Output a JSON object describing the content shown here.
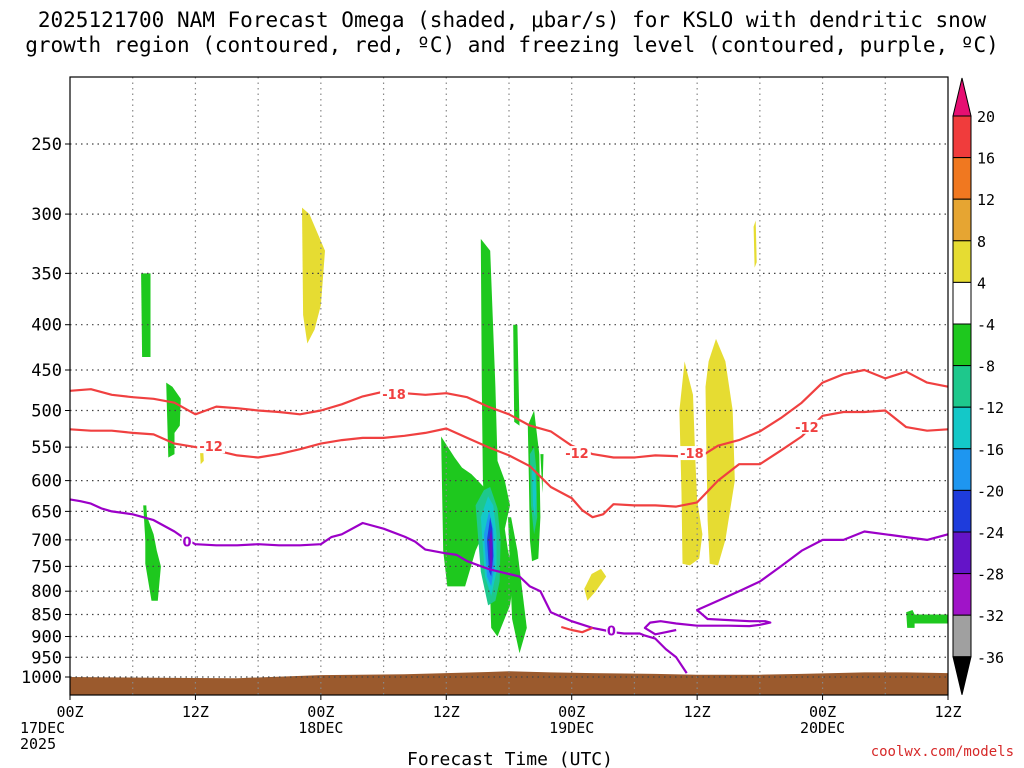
{
  "title_lines": [
    "2025121700 NAM Forecast Omega (shaded, μbar/s) for KSLO with dendritic snow",
    "growth region (contoured, red, ºC) and freezing level (contoured, purple, ºC)"
  ],
  "credit": "coolwx.com/models",
  "chart_data": {
    "type": "time-height cross section",
    "xlabel": "Forecast Time (UTC)",
    "ylabel": "",
    "x_unit": "hours since 2025-12-17 00Z",
    "xlim": [
      0,
      84
    ],
    "ylim": [
      1030,
      200
    ],
    "x_ticks": [
      {
        "hour": 0,
        "lines": [
          "00Z",
          "17DEC",
          "2025"
        ]
      },
      {
        "hour": 12,
        "lines": [
          "12Z"
        ]
      },
      {
        "hour": 24,
        "lines": [
          "00Z",
          "18DEC"
        ]
      },
      {
        "hour": 36,
        "lines": [
          "12Z"
        ]
      },
      {
        "hour": 48,
        "lines": [
          "00Z",
          "19DEC"
        ]
      },
      {
        "hour": 60,
        "lines": [
          "12Z"
        ]
      },
      {
        "hour": 72,
        "lines": [
          "00Z",
          "20DEC"
        ]
      },
      {
        "hour": 84,
        "lines": [
          "12Z"
        ]
      }
    ],
    "y_ticks": [
      250,
      300,
      350,
      400,
      450,
      500,
      550,
      600,
      650,
      700,
      750,
      800,
      850,
      900,
      950,
      1000
    ],
    "colorbar": {
      "labels": [
        "20",
        "16",
        "12",
        "8",
        "4",
        "-4",
        "-8",
        "-12",
        "-16",
        "-20",
        "-24",
        "-28",
        "-32",
        "-36"
      ],
      "colors": [
        "#e60f72",
        "#f03c3c",
        "#f07820",
        "#e6a532",
        "#e6dc32",
        "#ffffff",
        "#1ec81e",
        "#1ec88c",
        "#14c8c8",
        "#1e96f0",
        "#1e3cdc",
        "#6414c8",
        "#a014c8",
        "#a0a0a0",
        "#000000"
      ]
    },
    "terrain_color": "#9b5a2d",
    "contours": [
      {
        "label": "-18",
        "color": "#f04040",
        "x": [
          0,
          2,
          4,
          6,
          8,
          10,
          12,
          13,
          14,
          16,
          18,
          20,
          22,
          24,
          26,
          28,
          30,
          32,
          34,
          36,
          38,
          40,
          42,
          44,
          46,
          48,
          50,
          52,
          54,
          56,
          58,
          60,
          62,
          64,
          66,
          68,
          70,
          72,
          74,
          76,
          78,
          80,
          82,
          84
        ],
        "y": [
          475,
          473,
          480,
          483,
          485,
          490,
          505,
          500,
          495,
          497,
          500,
          502,
          505,
          500,
          492,
          482,
          476,
          478,
          480,
          478,
          483,
          495,
          505,
          520,
          528,
          548,
          560,
          565,
          565,
          562,
          563,
          567,
          548,
          540,
          528,
          510,
          490,
          465,
          455,
          450,
          460,
          452,
          465,
          470
        ]
      },
      {
        "label": "-12",
        "color": "#f04040",
        "x": [
          0,
          2,
          4,
          6,
          8,
          10,
          12,
          14,
          16,
          18,
          20,
          22,
          24,
          26,
          28,
          30,
          32,
          34,
          36,
          38,
          40,
          42,
          44,
          46,
          48,
          49,
          50,
          51,
          52,
          54,
          56,
          58,
          60,
          62,
          64,
          66,
          68,
          70,
          72,
          74,
          76,
          78,
          80,
          82,
          84
        ],
        "y": [
          525,
          527,
          527,
          530,
          532,
          545,
          550,
          555,
          562,
          565,
          560,
          553,
          545,
          540,
          537,
          537,
          534,
          530,
          524,
          537,
          550,
          562,
          578,
          610,
          628,
          648,
          660,
          655,
          638,
          640,
          640,
          642,
          635,
          600,
          575,
          575,
          555,
          535,
          507,
          502,
          502,
          500,
          522,
          527,
          525
        ]
      },
      {
        "label": "0",
        "color": "#9c00c8",
        "x": [
          0,
          1,
          2,
          3,
          4,
          6,
          8,
          10,
          11,
          12,
          14,
          16,
          18,
          20,
          22,
          24,
          25,
          26,
          28,
          30,
          32,
          33,
          34,
          36,
          37,
          38,
          40,
          42,
          43,
          44,
          45,
          46,
          48,
          50,
          51,
          52,
          53,
          54,
          54.5,
          55,
          56,
          57,
          58,
          59
        ],
        "y": [
          630,
          633,
          637,
          645,
          650,
          655,
          665,
          685,
          698,
          708,
          710,
          710,
          708,
          710,
          710,
          708,
          695,
          690,
          670,
          680,
          694,
          703,
          718,
          725,
          728,
          740,
          755,
          765,
          770,
          790,
          800,
          845,
          865,
          880,
          885,
          890,
          893,
          893,
          893,
          898,
          905,
          930,
          950,
          990
        ]
      },
      {
        "label": "0",
        "color": "#9c00c8",
        "x": [
          58,
          57,
          56,
          55,
          55.5,
          56.5,
          58,
          60,
          63,
          65,
          66,
          67,
          66.5,
          65,
          61,
          60,
          61,
          62,
          64,
          66,
          68,
          70,
          72,
          74,
          76,
          78,
          80,
          82,
          84
        ],
        "y": [
          885,
          890,
          895,
          880,
          868,
          865,
          870,
          875,
          875,
          876,
          873,
          868,
          865,
          865,
          860,
          840,
          830,
          820,
          800,
          780,
          750,
          720,
          700,
          700,
          685,
          690,
          695,
          700,
          690
        ]
      },
      {
        "label": "",
        "color": "#f04040",
        "x": [
          47,
          48,
          49,
          50
        ],
        "y": [
          878,
          885,
          890,
          880
        ]
      }
    ]
  }
}
